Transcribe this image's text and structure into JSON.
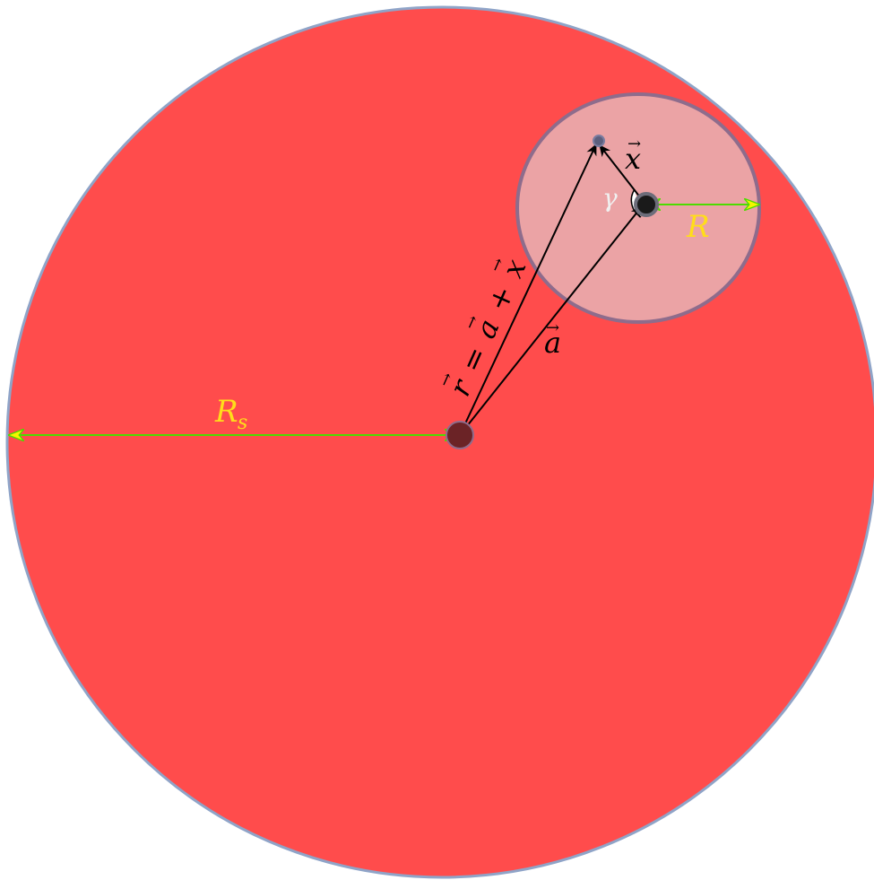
{
  "labels": {
    "big_radius": "R",
    "big_radius_sub": "s",
    "small_radius": "R",
    "vec_x": "x",
    "vec_a": "a",
    "vec_r_eq": "r = a + x",
    "vec_r_r": "r",
    "vec_r_eq_sign": "=",
    "vec_r_a": "a",
    "vec_r_plus": "+",
    "vec_r_x": "x",
    "angle": "γ",
    "arrow": "→"
  },
  "colors": {
    "large_fill": "#ff4c4c",
    "large_stroke": "#8fa4c8",
    "small_fill": "#eba3a5",
    "small_stroke": "#8e6c8c",
    "dimension_line": "#4cdc00",
    "dimension_arrowhead": "#f5f500",
    "label_yellow": "#ffdd1a",
    "vector": "#000000",
    "center_dot": "#6b2326",
    "angle_label": "#f0f0f0"
  },
  "icons": {
    "center_point": "dark-red-dot",
    "small_center_point": "black-dot",
    "target_point": "blue-grey-dot"
  }
}
